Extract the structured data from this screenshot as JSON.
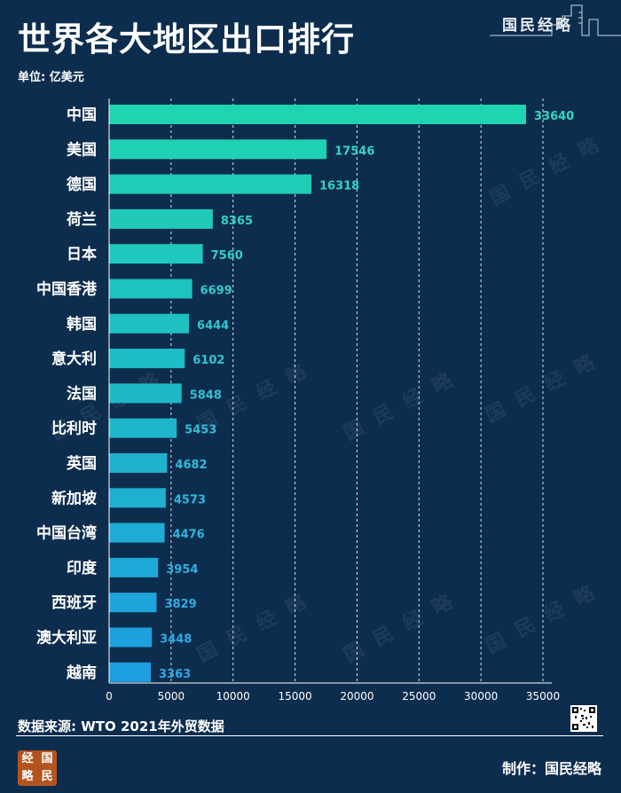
{
  "title": "世界各大地区出口排行",
  "unit": "单位: 亿美元",
  "brand": "国民经略",
  "source": "数据来源: WTO 2021年外贸数据",
  "credit": "制作：国民经略",
  "seal_chars": [
    "经",
    "国",
    "略",
    "民"
  ],
  "colors": {
    "background": "#0d2d4e",
    "bar_top": "#1fd4b0",
    "bar_bottom": "#1d9ee0",
    "label_top": "#33d9c0",
    "label_bottom": "#2fa8e8"
  },
  "chart_data": {
    "type": "bar",
    "orientation": "horizontal",
    "categories": [
      "中国",
      "美国",
      "德国",
      "荷兰",
      "日本",
      "中国香港",
      "韩国",
      "意大利",
      "法国",
      "比利时",
      "英国",
      "新加坡",
      "中国台湾",
      "印度",
      "西班牙",
      "澳大利亚",
      "越南"
    ],
    "values": [
      33640,
      17546,
      16318,
      8365,
      7560,
      6699,
      6444,
      6102,
      5848,
      5453,
      4682,
      4573,
      4476,
      3954,
      3829,
      3448,
      3363
    ],
    "xlim": [
      0,
      35000
    ],
    "xticks": [
      0,
      5000,
      10000,
      15000,
      20000,
      25000,
      30000,
      35000
    ],
    "grid": true,
    "data_labels": true
  }
}
